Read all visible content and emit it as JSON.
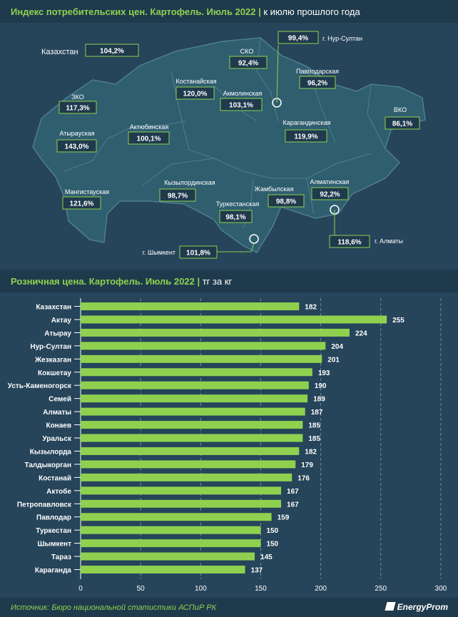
{
  "map_section": {
    "title": "Индекс потребительских цен. Картофель. Июль 2022",
    "subtitle": "к июлю прошлого года"
  },
  "bar_section": {
    "title": "Розничная цена. Картофель. Июль 2022",
    "subtitle": "тг за кг"
  },
  "footer": {
    "source": "Источник: Бюро национальной статистики АСПиР РК",
    "logo": "EnergyProm"
  },
  "colors": {
    "header_bg": "#1f3a4d",
    "accent": "#8fd14f",
    "map_fill": "#2f5e6f",
    "label_box": "#1f3a4d"
  },
  "chart_data": [
    {
      "type": "map",
      "title": "Индекс потребительских цен. Картофель. Июль 2022",
      "subtitle": "к июлю прошлого года",
      "regions": [
        {
          "name": "Казахстан",
          "value": "104,2%"
        },
        {
          "name": "СКО",
          "value": "92,4%"
        },
        {
          "name": "г. Нур-Султан",
          "value": "99,4%"
        },
        {
          "name": "Павлодарская",
          "value": "96,2%"
        },
        {
          "name": "Костанайская",
          "value": "120,0%"
        },
        {
          "name": "Акмолинская",
          "value": "103,1%"
        },
        {
          "name": "ЗКО",
          "value": "117,3%"
        },
        {
          "name": "ВКО",
          "value": "86,1%"
        },
        {
          "name": "Актюбинская",
          "value": "100,1%"
        },
        {
          "name": "Карагандинская",
          "value": "119,9%"
        },
        {
          "name": "Атырауская",
          "value": "143,0%"
        },
        {
          "name": "Мангистауская",
          "value": "121,6%"
        },
        {
          "name": "Кызылординская",
          "value": "98,7%"
        },
        {
          "name": "Алматинская",
          "value": "92,2%"
        },
        {
          "name": "Жамбылская",
          "value": "98,8%"
        },
        {
          "name": "Туркестанская",
          "value": "98,1%"
        },
        {
          "name": "г. Алматы",
          "value": "118,6%"
        },
        {
          "name": "г. Шымкент",
          "value": "101,8%"
        }
      ]
    },
    {
      "type": "bar",
      "orientation": "horizontal",
      "title": "Розничная цена. Картофель. Июль 2022",
      "subtitle": "тг за кг",
      "categories": [
        "Казахстан",
        "Актау",
        "Атырау",
        "Нур-Султан",
        "Жезказган",
        "Кокшетау",
        "Усть-Каменогорск",
        "Семей",
        "Алматы",
        "Конаев",
        "Уральск",
        "Кызылорда",
        "Талдыкорган",
        "Костанай",
        "Актобе",
        "Петропавловск",
        "Павлодар",
        "Туркестан",
        "Шымкент",
        "Тараз",
        "Караганда"
      ],
      "values": [
        182,
        255,
        224,
        204,
        201,
        193,
        190,
        189,
        187,
        185,
        185,
        182,
        179,
        176,
        167,
        167,
        159,
        150,
        150,
        145,
        137
      ],
      "xlim": [
        0,
        300
      ],
      "xticks": [
        0,
        50,
        100,
        150,
        200,
        250,
        300
      ],
      "grid": true,
      "bar_color": "#8fd14f"
    }
  ]
}
